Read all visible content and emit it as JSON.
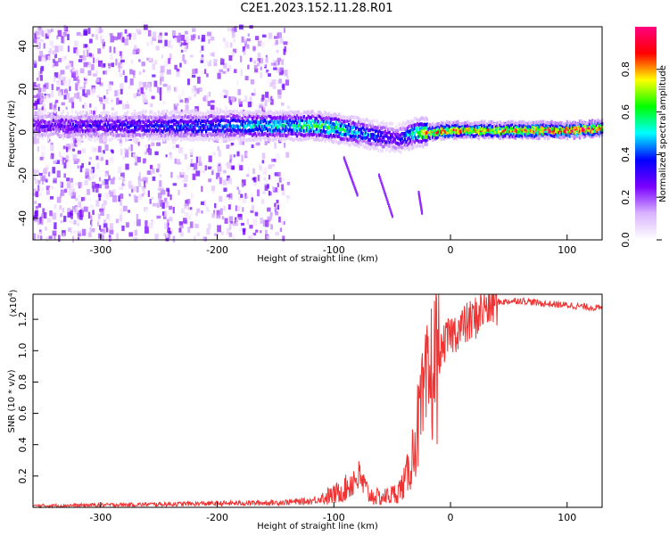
{
  "title": "C2E1.2023.152.11.28.R01",
  "chart_data": [
    {
      "type": "heatmap",
      "xlabel": "Height of straight line (km)",
      "ylabel": "Frequency (Hz)",
      "xlim": [
        -358,
        130
      ],
      "ylim": [
        -50,
        49
      ],
      "x_ticks": [
        -300,
        -200,
        -100,
        0,
        100
      ],
      "x_tick_labels": [
        "-300",
        "-200",
        "-100",
        "0",
        "100"
      ],
      "y_ticks": [
        -40,
        -20,
        0,
        20,
        40
      ],
      "y_tick_labels": [
        "-40",
        "-20",
        "0",
        "20",
        "40"
      ],
      "colorbar": {
        "label": "Normalized spectral amplitude",
        "range": [
          0.0,
          1.0
        ],
        "ticks": [
          0.0,
          0.2,
          0.4,
          0.6,
          0.8
        ],
        "tick_labels": [
          "0.0",
          "0.2",
          "0.4",
          "0.6",
          "0.8"
        ],
        "colormap": [
          "#ffffff",
          "#d9b3ff",
          "#7a00ff",
          "#0000ff",
          "#00ffff",
          "#00ff00",
          "#ffff00",
          "#ff0000",
          "#ff0080"
        ]
      },
      "ridge": {
        "name": "dominant spectral line",
        "x": [
          -358,
          -300,
          -250,
          -200,
          -150,
          -120,
          -100,
          -80,
          -60,
          -45,
          -30,
          -20,
          0,
          50,
          100,
          130
        ],
        "y": [
          3,
          3,
          3,
          3,
          3,
          3,
          2,
          0,
          -2,
          -3,
          0,
          0,
          1,
          1,
          1,
          2
        ],
        "amplitude": [
          0.25,
          0.3,
          0.35,
          0.4,
          0.5,
          0.55,
          0.55,
          0.45,
          0.35,
          0.3,
          0.55,
          0.75,
          0.8,
          0.75,
          0.9,
          0.8
        ]
      },
      "noise_extent_x": [
        -358,
        -140
      ],
      "noise_ylim": [
        -50,
        49
      ],
      "grid": false
    },
    {
      "type": "line",
      "xlabel": "Height of straight line (km)",
      "ylabel": "SNR (10 * v/v)",
      "y_multiplier_label": "(x10",
      "y_multiplier_exp": "4",
      "y_multiplier_close": ")",
      "xlim": [
        -358,
        130
      ],
      "ylim": [
        0,
        13600
      ],
      "x_ticks": [
        -300,
        -200,
        -100,
        0,
        100
      ],
      "x_tick_labels": [
        "-300",
        "-200",
        "-100",
        "0",
        "100"
      ],
      "y_ticks": [
        2000,
        4000,
        6000,
        8000,
        10000,
        12000
      ],
      "y_tick_labels": [
        "0.2",
        "0.4",
        "0.6",
        "0.8",
        "1.0",
        "1.2"
      ],
      "color": "#ee3333",
      "series": [
        {
          "x": [
            -358,
            -300,
            -250,
            -200,
            -150,
            -120,
            -100,
            -90,
            -80,
            -75,
            -70,
            -60,
            -50,
            -45,
            -40,
            -35,
            -30,
            -25,
            -20,
            -15,
            -10,
            -5,
            0,
            10,
            20,
            30,
            40,
            60,
            80,
            100,
            130
          ],
          "y": [
            100,
            150,
            200,
            250,
            300,
            400,
            800,
            1200,
            2000,
            1500,
            800,
            600,
            800,
            1000,
            1500,
            2500,
            4500,
            6000,
            7500,
            9000,
            9500,
            10500,
            11000,
            11500,
            12000,
            12800,
            13100,
            13200,
            13000,
            12900,
            12700
          ]
        }
      ],
      "grid": false
    }
  ]
}
